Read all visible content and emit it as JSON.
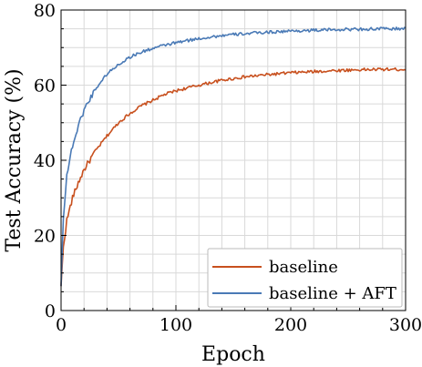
{
  "chart_data": {
    "type": "line",
    "xlabel": "Epoch",
    "ylabel": "Test Accuracy (%)",
    "xlim": [
      0,
      300
    ],
    "ylim": [
      0,
      80
    ],
    "xticks": [
      0,
      100,
      200,
      300
    ],
    "yticks": [
      0,
      20,
      40,
      60,
      80
    ],
    "grid": true,
    "legend": "bottom-right",
    "series": [
      {
        "name": "baseline",
        "color": "#c8501e",
        "x": [
          0,
          2,
          5,
          10,
          15,
          20,
          30,
          40,
          50,
          60,
          70,
          80,
          90,
          100,
          120,
          140,
          160,
          180,
          200,
          220,
          240,
          260,
          280,
          300
        ],
        "y": [
          6.5,
          17,
          24,
          30,
          34,
          37.5,
          42.5,
          46.5,
          50,
          52.5,
          54.5,
          56,
          57.5,
          58.5,
          60,
          61.3,
          62.2,
          62.8,
          63.3,
          63.6,
          63.9,
          64.1,
          64.2,
          64.2
        ]
      },
      {
        "name": "baseline + AFT",
        "color": "#4a7ab6",
        "x": [
          0,
          2,
          5,
          10,
          15,
          20,
          30,
          40,
          50,
          60,
          70,
          80,
          90,
          100,
          120,
          140,
          160,
          180,
          200,
          220,
          240,
          260,
          280,
          300
        ],
        "y": [
          6.5,
          25,
          36,
          44,
          49,
          53.5,
          59,
          63,
          65.5,
          67.5,
          68.8,
          69.8,
          70.6,
          71.3,
          72.4,
          73.2,
          73.7,
          74.1,
          74.4,
          74.6,
          74.8,
          74.9,
          75.0,
          75.0
        ]
      }
    ]
  }
}
